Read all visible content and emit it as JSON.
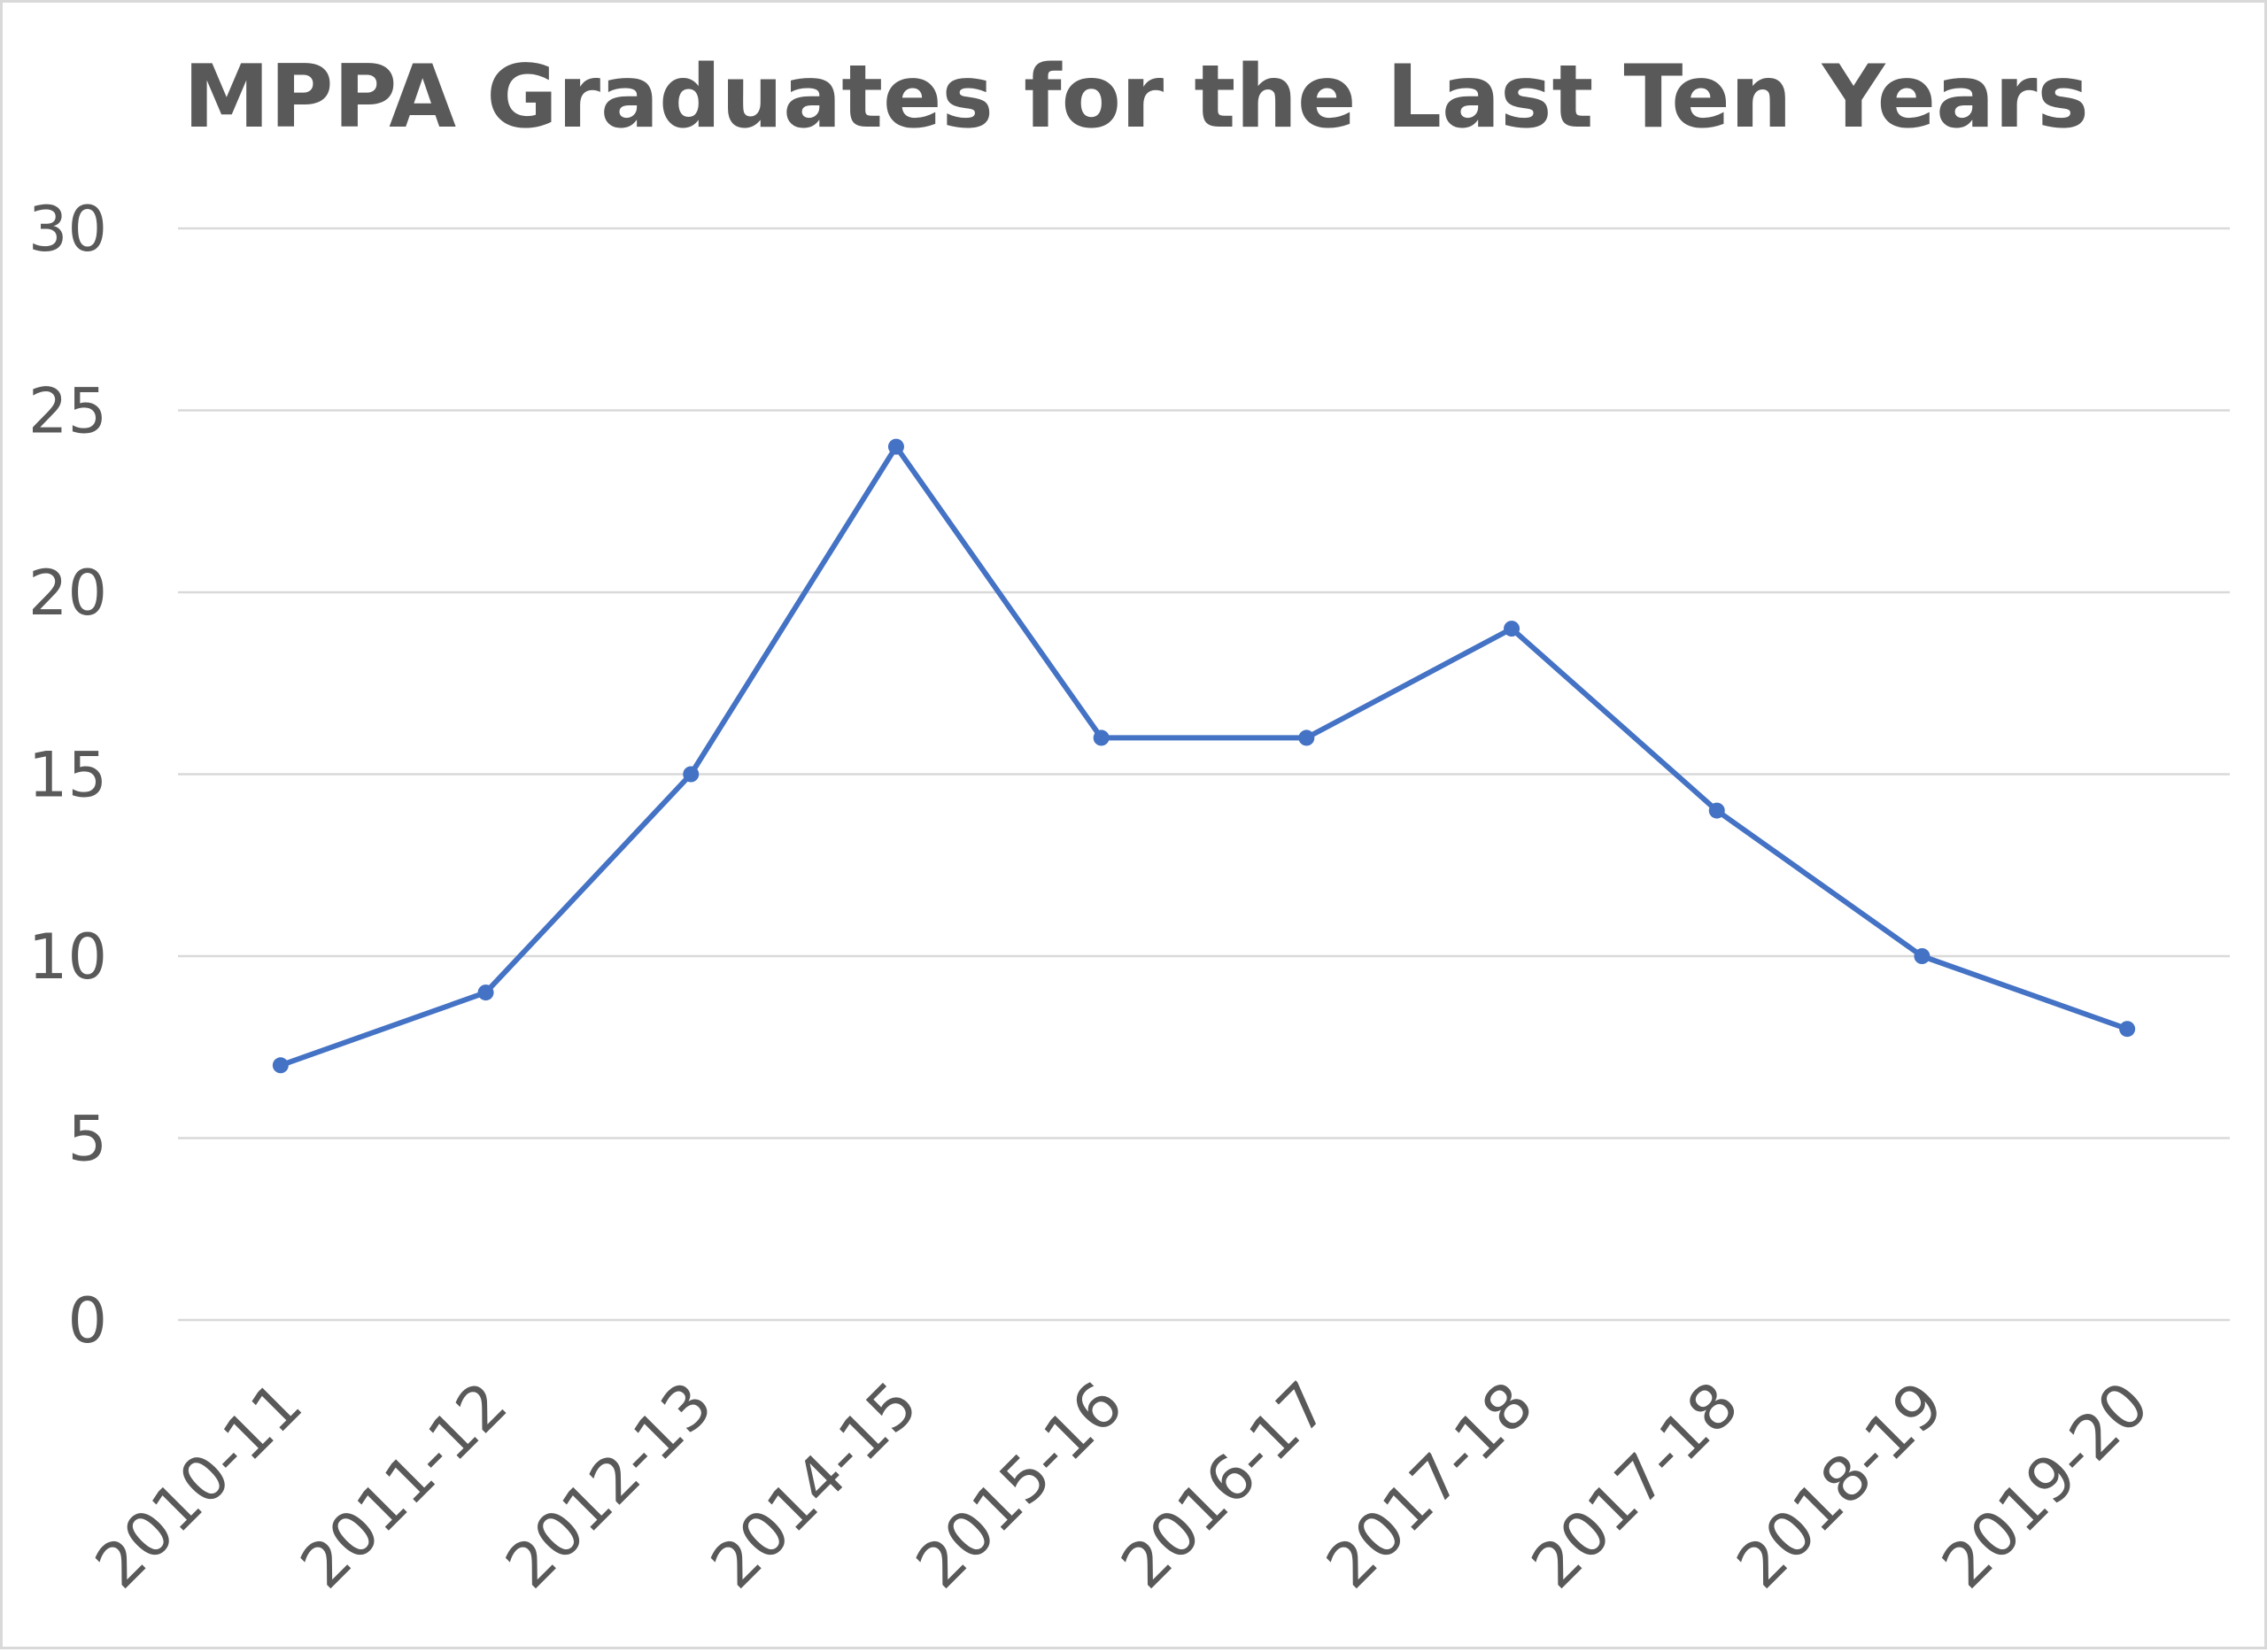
{
  "chart_data": {
    "type": "line",
    "title": "MPPA Graduates for the Last Ten Years",
    "xlabel": "",
    "ylabel": "",
    "categories": [
      "2010-11",
      "2011-12",
      "2012-13",
      "2014-15",
      "2015-16",
      "2016-17",
      "2017-18",
      "2017-18",
      "2018-19",
      "2019-20"
    ],
    "series": [
      {
        "values": [
          7,
          9,
          15,
          24,
          16,
          16,
          19,
          14,
          10,
          8
        ],
        "color": "#4472c4"
      }
    ],
    "ylim": [
      0,
      30
    ],
    "yticks": [
      0,
      5,
      10,
      15,
      20,
      25,
      30
    ],
    "grid": true,
    "legend": "none",
    "markers": true
  }
}
